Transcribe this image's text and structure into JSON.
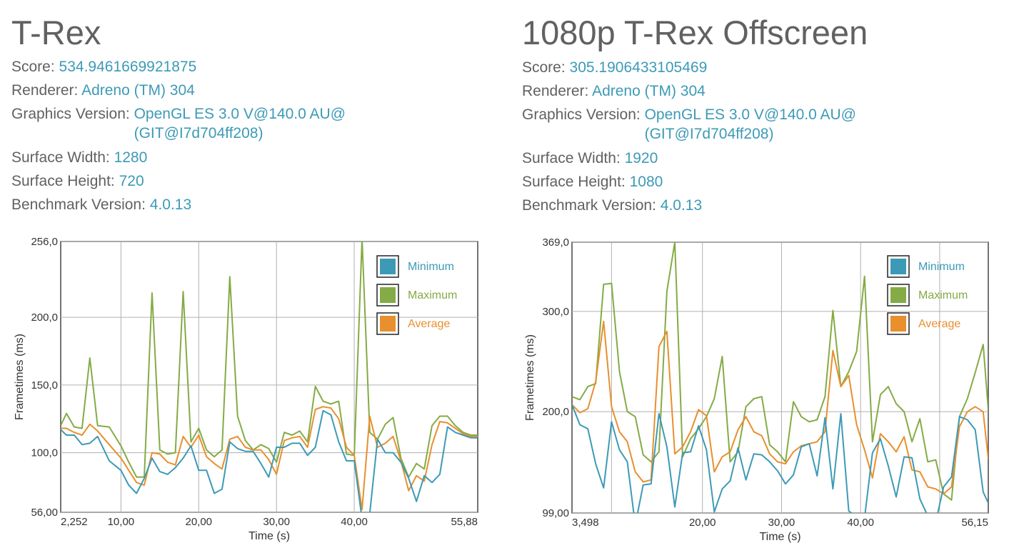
{
  "panels": [
    {
      "title": "T-Rex",
      "info": {
        "score_label": "Score:",
        "score": "534.9461669921875",
        "renderer_label": "Renderer:",
        "renderer": "Adreno (TM) 304",
        "graphics_label": "Graphics Version:",
        "graphics": "OpenGL ES 3.0 V@140.0 AU@\n(GIT@I7d704ff208)",
        "width_label": "Surface Width:",
        "width": "1280",
        "height_label": "Surface Height:",
        "height": "720",
        "benchmark_label": "Benchmark Version:",
        "benchmark": "4.0.13"
      }
    },
    {
      "title": "1080p T-Rex Offscreen",
      "info": {
        "score_label": "Score:",
        "score": "305.1906433105469",
        "renderer_label": "Renderer:",
        "renderer": "Adreno (TM) 304",
        "graphics_label": "Graphics Version:",
        "graphics": "OpenGL ES 3.0 V@140.0 AU@\n(GIT@I7d704ff208)",
        "width_label": "Surface Width:",
        "width": "1920",
        "height_label": "Surface Height:",
        "height": "1080",
        "benchmark_label": "Benchmark Version:",
        "benchmark": "4.0.13"
      }
    }
  ],
  "colors": {
    "minimum": "#3d9ab6",
    "maximum": "#84ab45",
    "average": "#e88f2e",
    "text": "#616161",
    "value": "#3d9ab6",
    "grid": "#b0b0b0"
  },
  "chart_data": [
    {
      "type": "line",
      "xlabel": "Time (s)",
      "ylabel": "Frametimes (ms)",
      "xlim": [
        2.252,
        55.88
      ],
      "ylim": [
        56.0,
        256.0
      ],
      "xticks": [
        "2,252",
        "10,00",
        "20,00",
        "30,00",
        "40,00",
        "55,88"
      ],
      "xtick_values": [
        2.252,
        10,
        20,
        30,
        40,
        55.88
      ],
      "yticks": [
        "256,0",
        "200,0",
        "150,0",
        "100,0",
        "56,00"
      ],
      "ytick_values": [
        256,
        200,
        150,
        100,
        56
      ],
      "grid": true,
      "legend_position": "top-right",
      "x": [
        2.252,
        3.0,
        4.0,
        5.0,
        6.0,
        7.0,
        8.5,
        10.0,
        11.0,
        12.0,
        13.0,
        14.0,
        15.0,
        16.0,
        17.0,
        18.0,
        19.0,
        20.0,
        21.0,
        22.0,
        23.0,
        24.0,
        25.0,
        26.0,
        27.0,
        28.0,
        29.0,
        30.0,
        31.0,
        32.0,
        33.0,
        34.0,
        35.0,
        36.0,
        37.0,
        38.0,
        39.0,
        40.0,
        41.0,
        42.0,
        43.0,
        44.0,
        45.0,
        46.0,
        47.0,
        48.0,
        49.0,
        50.0,
        51.0,
        52.0,
        53.0,
        54.0,
        55.0,
        55.88
      ],
      "series": [
        {
          "name": "Minimum",
          "values": [
            117,
            113,
            113,
            106,
            107,
            112,
            94,
            87,
            76,
            70,
            81,
            96,
            86,
            84,
            89,
            96,
            105,
            87,
            87,
            70,
            73,
            108,
            103,
            101,
            101,
            92,
            82,
            104,
            104,
            107,
            107,
            98,
            104,
            131,
            128,
            108,
            94,
            94,
            51,
            55,
            110,
            100,
            100,
            93,
            81,
            64,
            83,
            78,
            84,
            119,
            115,
            113,
            111,
            111
          ]
        },
        {
          "name": "Maximum",
          "values": [
            120,
            129,
            119,
            118,
            170,
            120,
            119,
            105,
            93,
            82,
            82,
            218,
            102,
            99,
            100,
            219,
            108,
            118,
            102,
            97,
            102,
            230,
            127,
            109,
            102,
            106,
            103,
            93,
            115,
            113,
            116,
            108,
            149,
            138,
            136,
            138,
            99,
            98,
            258,
            115,
            110,
            121,
            126,
            96,
            82,
            92,
            88,
            120,
            127,
            127,
            120,
            115,
            113,
            113
          ]
        },
        {
          "name": "Average",
          "values": [
            118,
            118,
            115,
            113,
            121,
            116,
            106,
            96,
            87,
            78,
            76,
            100,
            99,
            93,
            91,
            112,
            104,
            113,
            97,
            92,
            88,
            110,
            112,
            104,
            102,
            102,
            95,
            84,
            109,
            111,
            112,
            104,
            132,
            134,
            133,
            125,
            104,
            98,
            58,
            127,
            104,
            107,
            112,
            94,
            72,
            83,
            79,
            106,
            123,
            122,
            118,
            114,
            112,
            112
          ]
        }
      ]
    },
    {
      "type": "line",
      "xlabel": "Time (s)",
      "ylabel": "Frametimes (ms)",
      "xlim": [
        3.498,
        56.15
      ],
      "ylim": [
        99.0,
        369.0
      ],
      "xticks": [
        "3,498",
        "20,00",
        "30,00",
        "40,00",
        "56,15"
      ],
      "xtick_values": [
        3.498,
        20,
        30,
        40,
        56.15
      ],
      "yticks": [
        "369,0",
        "300,0",
        "200,0",
        "99,00"
      ],
      "ytick_values": [
        369,
        300,
        200,
        99
      ],
      "grid": true,
      "legend_position": "top-right",
      "x": [
        3.498,
        4.5,
        5.5,
        6.5,
        7.5,
        8.5,
        9.5,
        10.5,
        11.5,
        12.5,
        13.5,
        14.5,
        15.5,
        16.5,
        17.5,
        18.5,
        19.5,
        20.5,
        21.5,
        22.5,
        23.5,
        24.5,
        25.5,
        26.5,
        27.5,
        28.5,
        29.5,
        30.5,
        31.5,
        32.5,
        33.5,
        34.5,
        35.5,
        36.5,
        37.5,
        38.5,
        39.5,
        40.5,
        41.5,
        42.5,
        43.5,
        44.5,
        45.5,
        46.5,
        47.5,
        48.5,
        49.5,
        50.5,
        51.5,
        52.5,
        53.5,
        54.5,
        55.5,
        56.15
      ],
      "series": [
        {
          "name": "Minimum",
          "values": [
            207,
            187,
            183,
            148,
            124,
            190,
            162,
            150,
            87,
            127,
            128,
            198,
            165,
            105,
            159,
            160,
            186,
            162,
            100,
            123,
            131,
            164,
            132,
            158,
            157,
            150,
            141,
            128,
            137,
            165,
            168,
            136,
            194,
            123,
            198,
            101,
            95,
            94,
            159,
            173,
            146,
            115,
            155,
            154,
            113,
            96,
            90,
            125,
            135,
            195,
            192,
            182,
            120,
            109
          ]
        },
        {
          "name": "Maximum",
          "values": [
            215,
            212,
            225,
            228,
            327,
            328,
            240,
            200,
            195,
            157,
            150,
            160,
            320,
            369,
            155,
            173,
            183,
            195,
            213,
            255,
            150,
            160,
            205,
            213,
            215,
            167,
            160,
            150,
            210,
            195,
            190,
            192,
            215,
            301,
            225,
            240,
            260,
            335,
            170,
            217,
            225,
            208,
            200,
            170,
            193,
            150,
            152,
            118,
            112,
            195,
            213,
            239,
            267,
            202
          ]
        },
        {
          "name": "Average",
          "values": [
            207,
            199,
            203,
            230,
            290,
            205,
            180,
            170,
            140,
            130,
            132,
            265,
            280,
            158,
            165,
            180,
            202,
            196,
            140,
            155,
            160,
            182,
            195,
            180,
            176,
            158,
            150,
            148,
            160,
            166,
            168,
            170,
            180,
            261,
            225,
            236,
            187,
            162,
            134,
            178,
            170,
            160,
            175,
            142,
            140,
            125,
            123,
            118,
            125,
            185,
            200,
            205,
            200,
            153
          ]
        }
      ]
    }
  ]
}
